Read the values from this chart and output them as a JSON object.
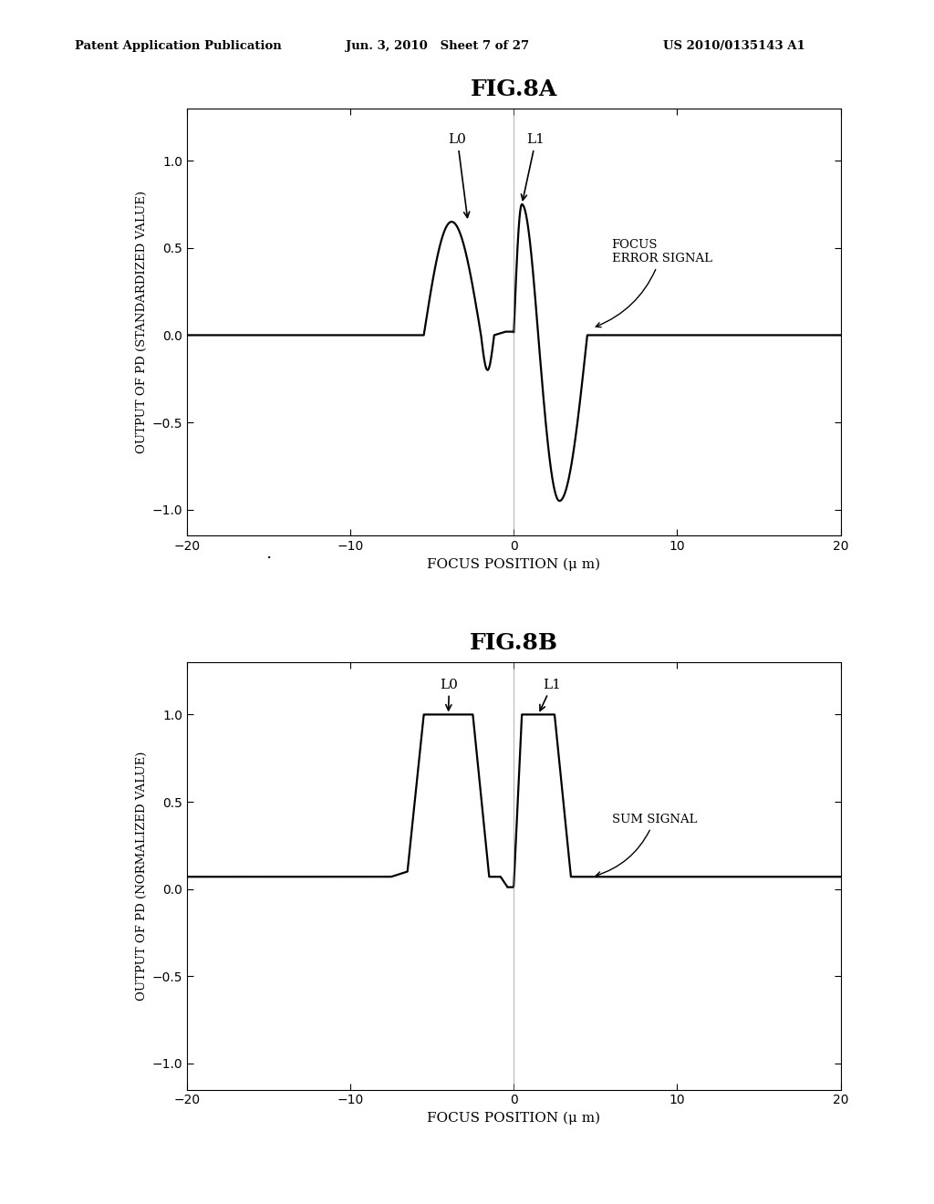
{
  "fig8a_title": "FIG.8A",
  "fig8b_title": "FIG.8B",
  "header_left": "Patent Application Publication",
  "header_center": "Jun. 3, 2010   Sheet 7 of 27",
  "header_right": "US 2010/0135143 A1",
  "xlabel": "FOCUS POSITION (μ m)",
  "fig8a_ylabel": "OUTPUT OF PD (STANDARDIZED VALUE)",
  "fig8b_ylabel": "OUTPUT OF PD (NORMALIZED VALUE)",
  "xlim": [
    -20,
    20
  ],
  "ylim": [
    -1.15,
    1.3
  ],
  "xticks": [
    -20,
    -10,
    0,
    10,
    20
  ],
  "yticks": [
    -1.0,
    -0.5,
    0.0,
    0.5,
    1.0
  ],
  "annotation_8a": "FOCUS\nERROR SIGNAL",
  "annotation_8b": "SUM SIGNAL",
  "L0_label": "L0",
  "L1_label": "L1",
  "background_color": "#ffffff",
  "line_color": "#000000"
}
